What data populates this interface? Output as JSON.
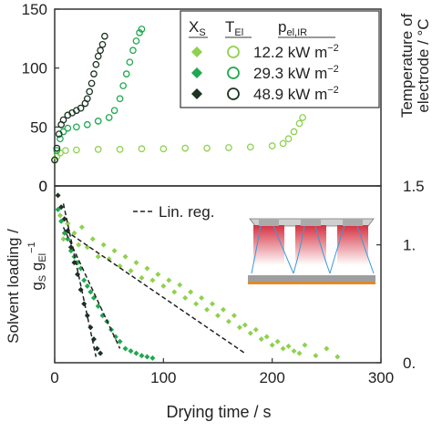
{
  "chart_data": [
    {
      "type": "scatter",
      "panel": "top",
      "x_range": [
        0,
        300
      ],
      "ylim": [
        0,
        150
      ],
      "yticks": [
        "0",
        "50",
        "100",
        "150"
      ],
      "ylabel_right": [
        "Temperature of",
        "electrode / °C"
      ],
      "legend": {
        "placement": "top-right",
        "headers": [
          "X",
          "S",
          "T",
          "El",
          "p",
          "el,IR"
        ],
        "entries": [
          "12.2 kW m",
          "29.3 kW m",
          "48.9 kW m"
        ],
        "superscript": "−2"
      },
      "series": [
        {
          "name": "12.2 kW m−2",
          "color": "#8fd14f",
          "marker": "open-circle",
          "x": [
            0,
            2,
            5,
            10,
            20,
            40,
            60,
            80,
            100,
            120,
            140,
            160,
            180,
            200,
            210,
            215,
            220,
            225,
            228
          ],
          "y": [
            22,
            25,
            28,
            30,
            30.5,
            31,
            31,
            31.5,
            31.5,
            32,
            32,
            32.5,
            33,
            34,
            36,
            40,
            46,
            53,
            58
          ]
        },
        {
          "name": "29.3 kW m−2",
          "color": "#1fa84f",
          "marker": "open-circle",
          "x": [
            0,
            2,
            5,
            8,
            12,
            20,
            30,
            40,
            50,
            55,
            60,
            63,
            66,
            69,
            72,
            75,
            78,
            80
          ],
          "y": [
            22,
            30,
            40,
            46,
            49,
            50,
            52,
            55,
            58,
            64,
            74,
            85,
            95,
            105,
            115,
            123,
            130,
            133
          ]
        },
        {
          "name": "48.9 kW m−2",
          "color": "#1c3322",
          "marker": "open-circle",
          "x": [
            0,
            2,
            4,
            6,
            8,
            12,
            16,
            20,
            24,
            28,
            30,
            32,
            34,
            36,
            38,
            40,
            42,
            44,
            46
          ],
          "y": [
            22,
            32,
            44,
            52,
            56,
            60,
            62,
            64,
            66,
            70,
            74,
            80,
            87,
            95,
            103,
            110,
            115,
            120,
            127
          ]
        }
      ]
    },
    {
      "type": "scatter",
      "panel": "bottom",
      "x_range": [
        0,
        300
      ],
      "xticks": [
        "0",
        "100",
        "200",
        "300"
      ],
      "xlabel": "Drying time / s",
      "ylim": [
        0,
        1.5
      ],
      "yticks_visible": [
        "0.",
        "1.",
        "1.5"
      ],
      "top_left_tick": "0",
      "ylabel_left": [
        "Solvent loading /",
        "g",
        "S",
        " g",
        "El",
        "−1"
      ],
      "annotation": "Lin. reg.",
      "series": [
        {
          "name": "12.2 kW m−2",
          "color": "#8fd14f",
          "marker": "diamond",
          "regression": {
            "x": [
              10,
              175
            ],
            "y": [
              1.12,
              0.08
            ]
          },
          "x": [
            5,
            8,
            12,
            15,
            18,
            22,
            25,
            30,
            35,
            40,
            45,
            50,
            55,
            60,
            65,
            70,
            75,
            80,
            85,
            90,
            95,
            100,
            105,
            110,
            115,
            120,
            125,
            130,
            135,
            140,
            145,
            150,
            155,
            160,
            165,
            170,
            175,
            180,
            185,
            190,
            195,
            200,
            205,
            210,
            215,
            220,
            225,
            230,
            240,
            250,
            260
          ],
          "y": [
            1.25,
            1.05,
            1.18,
            0.95,
            1.1,
            1.0,
            1.15,
            0.98,
            1.05,
            0.9,
            1.0,
            0.88,
            0.95,
            0.82,
            0.9,
            0.78,
            0.85,
            0.72,
            0.8,
            0.7,
            0.75,
            0.65,
            0.7,
            0.6,
            0.66,
            0.55,
            0.6,
            0.5,
            0.55,
            0.45,
            0.5,
            0.4,
            0.45,
            0.35,
            0.4,
            0.3,
            0.32,
            0.25,
            0.28,
            0.2,
            0.22,
            0.15,
            0.18,
            0.12,
            0.14,
            0.1,
            0.08,
            0.15,
            0.06,
            0.12,
            0.05
          ]
        },
        {
          "name": "29.3 kW m−2",
          "color": "#1fa84f",
          "marker": "diamond",
          "regression": {
            "x": [
              8,
              60
            ],
            "y": [
              1.15,
              0.12
            ]
          },
          "x": [
            3,
            6,
            9,
            12,
            15,
            18,
            21,
            24,
            27,
            30,
            33,
            36,
            40,
            44,
            48,
            52,
            56,
            60,
            65,
            70,
            75,
            80,
            85,
            90
          ],
          "y": [
            1.3,
            1.2,
            1.1,
            1.05,
            0.95,
            0.9,
            0.85,
            0.8,
            0.7,
            0.65,
            0.6,
            0.55,
            0.48,
            0.4,
            0.35,
            0.28,
            0.22,
            0.18,
            0.12,
            0.1,
            0.08,
            0.06,
            0.05,
            0.04
          ]
        },
        {
          "name": "48.9 kW m−2",
          "color": "#1c3322",
          "marker": "diamond",
          "regression": {
            "x": [
              8,
              38
            ],
            "y": [
              1.35,
              0.05
            ]
          },
          "x": [
            3,
            6,
            9,
            12,
            15,
            18,
            21,
            24,
            27,
            30,
            33,
            36,
            39,
            42
          ],
          "y": [
            1.42,
            1.32,
            1.22,
            1.12,
            0.98,
            0.85,
            0.75,
            0.62,
            0.5,
            0.4,
            0.3,
            0.2,
            0.12,
            0.08
          ]
        }
      ]
    }
  ]
}
